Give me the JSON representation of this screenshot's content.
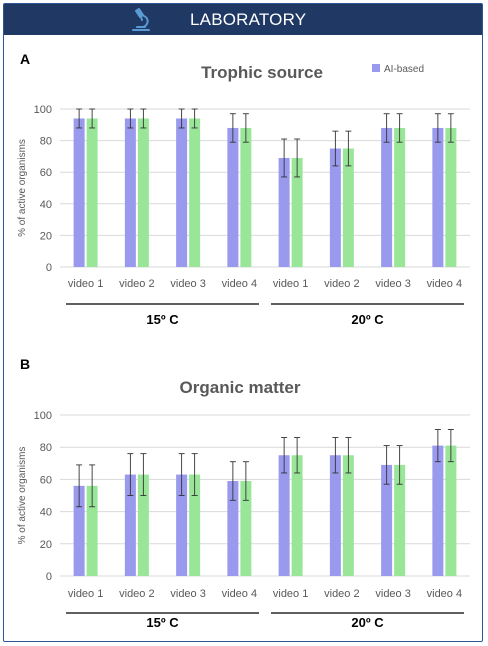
{
  "header": {
    "title": "LABORATORY",
    "icon": "microscope-icon",
    "background": "#1f3864"
  },
  "colors": {
    "series_a": "#9999ee",
    "series_b": "#99e699",
    "axis_text": "#595959",
    "grid": "#d9d9d9"
  },
  "chart_data": [
    {
      "panel_label": "A",
      "type": "bar",
      "title": "Trophic source",
      "ylabel": "% of active organisms",
      "ylim": [
        0,
        100
      ],
      "yticks": [
        0,
        20,
        40,
        60,
        80,
        100
      ],
      "grid": true,
      "legend_position": "top-right",
      "categories": [
        "video 1",
        "video 2",
        "video 3",
        "video 4",
        "video 1",
        "video 2",
        "video 3",
        "video 4"
      ],
      "groups": [
        {
          "label": "15º C"
        },
        {
          "label": "20º C"
        }
      ],
      "series": [
        {
          "name": "AI-based",
          "color": "#9999ee",
          "values": [
            94,
            94,
            94,
            88,
            69,
            75,
            88,
            88
          ],
          "errors": [
            6,
            6,
            6,
            9,
            12,
            11,
            9,
            9
          ]
        },
        {
          "color": "#99e699",
          "values": [
            94,
            94,
            94,
            88,
            69,
            75,
            88,
            88
          ],
          "errors": [
            6,
            6,
            6,
            9,
            12,
            11,
            9,
            9
          ]
        }
      ]
    },
    {
      "panel_label": "B",
      "type": "bar",
      "title": "Organic matter",
      "ylabel": "% of active organisms",
      "ylim": [
        0,
        100
      ],
      "yticks": [
        0,
        20,
        40,
        60,
        80,
        100
      ],
      "grid": true,
      "categories": [
        "video 1",
        "video 2",
        "video 3",
        "video 4",
        "video 1",
        "video 2",
        "video 3",
        "video 4"
      ],
      "groups": [
        {
          "label": "15º C"
        },
        {
          "label": "20º C"
        }
      ],
      "series": [
        {
          "color": "#9999ee",
          "values": [
            56,
            63,
            63,
            59,
            75,
            75,
            69,
            81
          ],
          "errors": [
            13,
            13,
            13,
            12,
            11,
            11,
            12,
            10
          ]
        },
        {
          "color": "#99e699",
          "values": [
            56,
            63,
            63,
            59,
            75,
            75,
            69,
            81
          ],
          "errors": [
            13,
            13,
            13,
            12,
            11,
            11,
            12,
            10
          ]
        }
      ]
    }
  ]
}
